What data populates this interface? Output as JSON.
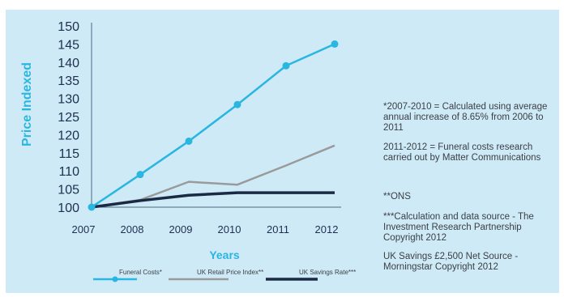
{
  "colors": {
    "background": "#cfeaf7",
    "accent": "#29b6e0",
    "funeral": "#29b6e0",
    "rpi": "#9a9a9a",
    "savings": "#1b2a44",
    "axis_text": "#1d2f4f"
  },
  "chart_data": {
    "type": "line",
    "title": "",
    "xlabel": "Years",
    "ylabel": "Price Indexed",
    "ylim": [
      100,
      150
    ],
    "yticks": [
      100,
      105,
      110,
      115,
      120,
      125,
      130,
      135,
      140,
      145,
      150
    ],
    "categories": [
      "2007",
      "2008",
      "2009",
      "2010",
      "2011",
      "2012"
    ],
    "grid": false,
    "legend_position": "bottom",
    "series": [
      {
        "name": "Funeral Costs*",
        "values": [
          100,
          109,
          118.2,
          128.3,
          139,
          145
        ],
        "color": "#29b6e0",
        "markers": true
      },
      {
        "name": "UK Retail Price Index**",
        "values": [
          100,
          102,
          107,
          106.2,
          111.5,
          117
        ],
        "color": "#9a9a9a",
        "markers": false
      },
      {
        "name": "UK Savings Rate***",
        "values": [
          100,
          101.8,
          103.3,
          104,
          104,
          104
        ],
        "color": "#1b2a44",
        "markers": false
      }
    ]
  },
  "notes": [
    "*2007-2010 = Calculated using average annual increase of 8.65% from 2006 to 2011",
    "2011-2012 = Funeral costs research carried out by Matter Communications",
    "**ONS",
    "***Calculation and data source - The Investment Research Partnership Copyright 2012",
    "UK Savings £2,500 Net Source - Morningstar Copyright 2012"
  ]
}
